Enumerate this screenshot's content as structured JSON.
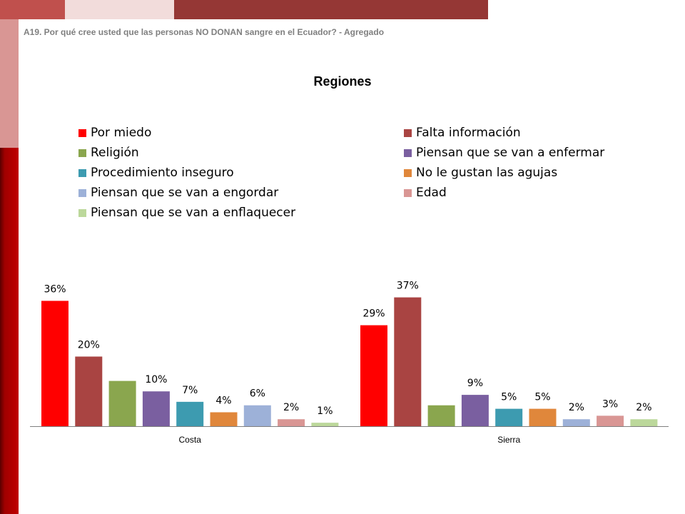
{
  "header": {
    "subtitle": "A19. Por qué cree usted que las personas NO DONAN sangre en el Ecuador? - Agregado"
  },
  "chart_data": {
    "type": "bar",
    "title": "Regiones",
    "xlabel": "",
    "ylabel": "",
    "ylim": [
      0,
      40
    ],
    "grid": false,
    "legend_position": "top",
    "categories": [
      "Costa",
      "Sierra"
    ],
    "series": [
      {
        "name": "Por miedo",
        "color": "#ff0000",
        "values": [
          36,
          29
        ],
        "labels": [
          "36%",
          "29%"
        ]
      },
      {
        "name": "Falta información",
        "color": "#a94442",
        "values": [
          20,
          37
        ],
        "labels": [
          "20%",
          "37%"
        ]
      },
      {
        "name": "Religión",
        "color": "#8aa64e",
        "values": [
          13,
          6
        ],
        "labels": [
          "",
          ""
        ]
      },
      {
        "name": "Piensan que se van a enfermar",
        "color": "#7a5fa0",
        "values": [
          10,
          9
        ],
        "labels": [
          "10%",
          "9%"
        ]
      },
      {
        "name": "Procedimiento inseguro",
        "color": "#3d9bb0",
        "values": [
          7,
          5
        ],
        "labels": [
          "7%",
          "5%"
        ]
      },
      {
        "name": "No le gustan las agujas",
        "color": "#e0873b",
        "values": [
          4,
          5
        ],
        "labels": [
          "4%",
          "5%"
        ]
      },
      {
        "name": "Piensan que se van a engordar",
        "color": "#9db1d8",
        "values": [
          6,
          2
        ],
        "labels": [
          "6%",
          "2%"
        ]
      },
      {
        "name": "Edad",
        "color": "#d99694",
        "values": [
          2,
          3
        ],
        "labels": [
          "2%",
          "3%"
        ]
      },
      {
        "name": "Piensan que se van a enflaquecer",
        "color": "#bcd89b",
        "values": [
          1,
          2
        ],
        "labels": [
          "1%",
          "2%"
        ]
      }
    ]
  }
}
